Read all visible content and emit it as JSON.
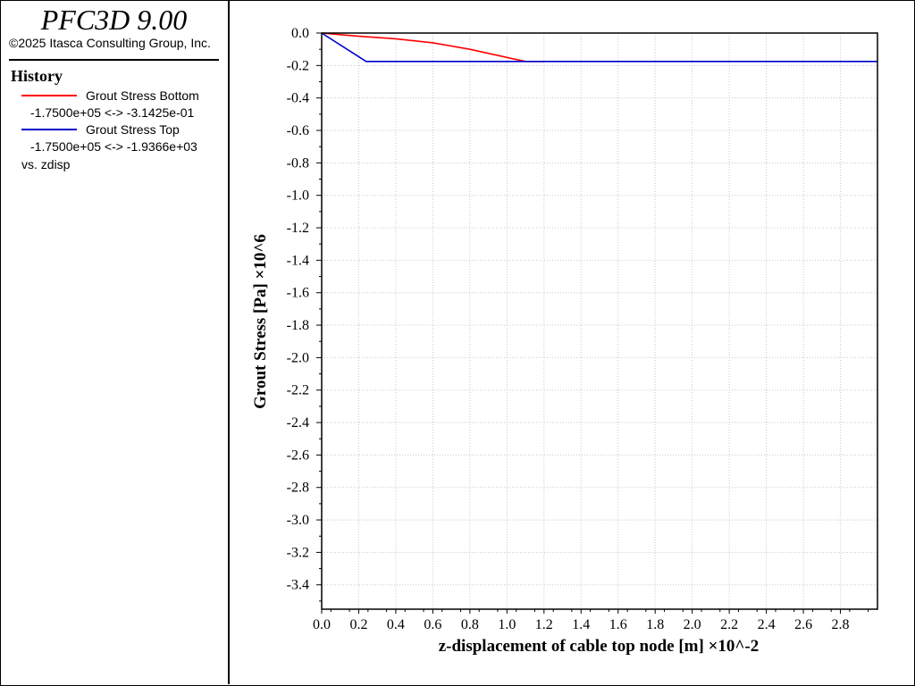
{
  "app": {
    "title": "PFC3D 9.00",
    "copyright": "©2025 Itasca Consulting Group, Inc."
  },
  "legend": {
    "heading": "History",
    "entries": [
      {
        "name": "Grout Stress Bottom",
        "range": "-1.7500e+05 <-> -3.1425e-01",
        "color": "#ff0000"
      },
      {
        "name": "Grout Stress Top",
        "range": "-1.7500e+05 <-> -1.9366e+03",
        "color": "#0000cc"
      }
    ],
    "vs_label": "vs. zdisp"
  },
  "chart_data": {
    "type": "line",
    "xlabel": "z-displacement of cable top node [m]  ×10^-2",
    "ylabel": "Grout Stress [Pa]  ×10^6",
    "xlim": [
      0,
      3.0
    ],
    "ylim": [
      -3.55,
      0.0
    ],
    "x_ticks": [
      "0.0",
      "0.2",
      "0.4",
      "0.6",
      "0.8",
      "1.0",
      "1.2",
      "1.4",
      "1.6",
      "1.8",
      "2.0",
      "2.2",
      "2.4",
      "2.6",
      "2.8"
    ],
    "y_ticks": [
      "0.0",
      "-0.2",
      "-0.4",
      "-0.6",
      "-0.8",
      "-1.0",
      "-1.2",
      "-1.4",
      "-1.6",
      "-1.8",
      "-2.0",
      "-2.2",
      "-2.4",
      "-2.6",
      "-2.8",
      "-3.0",
      "-3.2",
      "-3.4"
    ],
    "grid": true,
    "series": [
      {
        "name": "Grout Stress Bottom",
        "color": "#ff0000",
        "points": [
          [
            0.0,
            0.0
          ],
          [
            0.2,
            -0.02
          ],
          [
            0.4,
            -0.035
          ],
          [
            0.6,
            -0.06
          ],
          [
            0.8,
            -0.1
          ],
          [
            1.0,
            -0.15
          ],
          [
            1.1,
            -0.175
          ],
          [
            1.2,
            -0.175
          ]
        ]
      },
      {
        "name": "Grout Stress Top",
        "color": "#0000cc",
        "points": [
          [
            0.0,
            0.0
          ],
          [
            0.24,
            -0.175
          ],
          [
            3.0,
            -0.175
          ]
        ]
      }
    ]
  }
}
